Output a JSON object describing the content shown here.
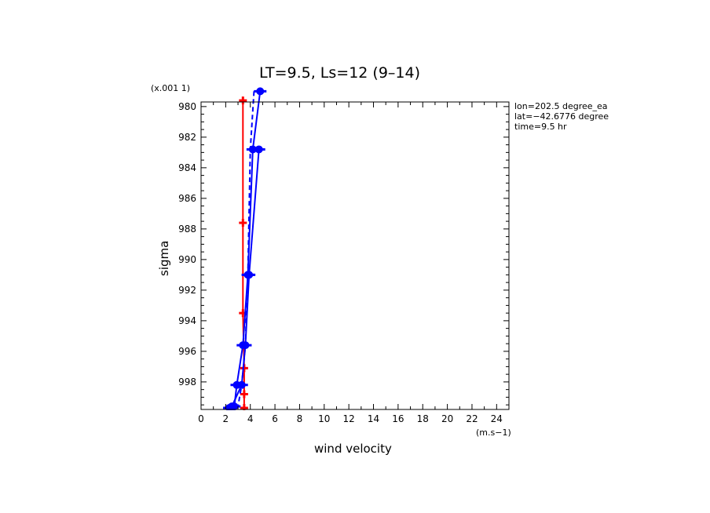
{
  "chart_data": {
    "type": "line",
    "title": "LT=9.5, Ls=12 (9–14)",
    "xlabel": "wind velocity",
    "ylabel": "sigma",
    "x_unit_label": "(m.s−1)",
    "y_scale_label": "(x.001 1)",
    "xlim": [
      0,
      25
    ],
    "ylim": [
      979.7,
      999.8
    ],
    "y_inverted": true,
    "x_ticks": [
      "0",
      "2",
      "4",
      "6",
      "8",
      "10",
      "12",
      "14",
      "16",
      "18",
      "20",
      "22",
      "24"
    ],
    "y_ticks": [
      "980",
      "982",
      "984",
      "986",
      "988",
      "990",
      "992",
      "994",
      "996",
      "998"
    ],
    "info_lines": [
      "lon=202.5 degree_ea",
      "lat=−42.6776 degree",
      "time=9.5 hr"
    ],
    "grid": false,
    "series": [
      {
        "color": "#ff0000",
        "style": "solid",
        "marker": "plus",
        "x": [
          3.4,
          3.4,
          3.4,
          3.5,
          3.5,
          3.5
        ],
        "y": [
          979.6,
          987.6,
          993.5,
          997.1,
          998.8,
          999.7
        ]
      },
      {
        "color": "#0000ff",
        "style": "solid",
        "marker": "circle",
        "x": [
          4.7,
          3.9,
          3.6,
          3.3,
          2.5,
          2.3
        ],
        "y": [
          982.8,
          991.0,
          995.6,
          998.2,
          999.6,
          999.7
        ]
      },
      {
        "color": "#0000ff",
        "style": "dash",
        "marker": "none",
        "x": [
          4.3,
          4.0,
          3.8,
          3.6,
          3.3,
          3.0
        ],
        "y": [
          979.0,
          982.8,
          991.0,
          995.6,
          998.2,
          999.6
        ]
      },
      {
        "color": "#0000ff",
        "style": "solid",
        "marker": "circle",
        "x": [
          4.8,
          4.2,
          3.8,
          3.4,
          2.9,
          2.7
        ],
        "y": [
          979.0,
          982.8,
          991.0,
          995.6,
          998.2,
          999.6
        ]
      }
    ]
  }
}
